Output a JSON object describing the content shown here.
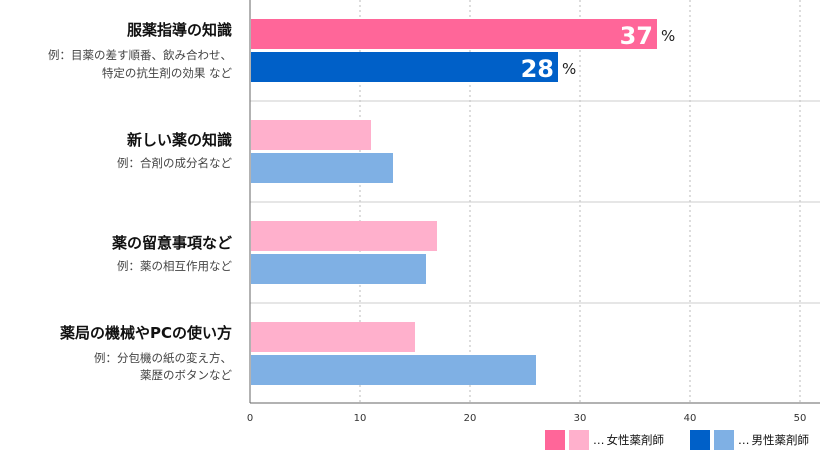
{
  "chart_data": {
    "type": "bar",
    "orientation": "horizontal",
    "categories": [
      {
        "title": "服薬指導の知識",
        "example": [
          "例：目薬の差す順番、飲み合わせ、",
          "特定の抗生剤の効果 など"
        ]
      },
      {
        "title": "新しい薬の知識",
        "example": [
          "例：合剤の成分名など"
        ]
      },
      {
        "title": "薬の留意事項など",
        "example": [
          "例：薬の相互作用など"
        ]
      },
      {
        "title": "薬局の機械やPCの使い方",
        "example": [
          "例：分包機の紙の変え方、",
          "薬歴のボタンなど"
        ]
      }
    ],
    "series": [
      {
        "name": "女性薬剤師",
        "values": [
          37,
          11,
          17,
          15
        ]
      },
      {
        "name": "男性薬剤師",
        "values": [
          28,
          13,
          16,
          26
        ]
      }
    ],
    "data_labels": [
      {
        "category_index": 0,
        "series_index": 0,
        "value": "37",
        "unit": "%"
      },
      {
        "category_index": 0,
        "series_index": 1,
        "value": "28",
        "unit": "%"
      }
    ],
    "xlim": [
      0,
      50
    ],
    "xticks": [
      0,
      10,
      20,
      30,
      40,
      50
    ],
    "grid": true,
    "legend_position": "bottom-right",
    "legend_prefix": "…"
  },
  "colors": {
    "female_highlight": "#ff6699",
    "female": "#ffb0cc",
    "male_highlight": "#0060c8",
    "male": "#7fb0e4",
    "grid": "#bbbbbb",
    "separator": "#cccccc",
    "axis": "#666666"
  }
}
